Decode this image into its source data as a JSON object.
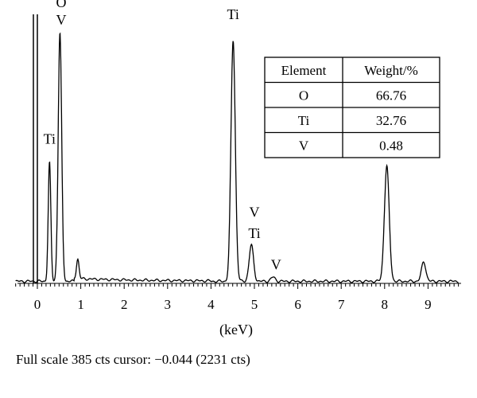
{
  "chart_data": {
    "type": "line",
    "xlabel": "(keV)",
    "xlim": [
      -0.5,
      9.7
    ],
    "x_ticks": [
      "0",
      "1",
      "2",
      "3",
      "4",
      "5",
      "6",
      "7",
      "8",
      "9"
    ],
    "ylim": [
      0,
      385
    ],
    "grid": false,
    "line_color": "#000000",
    "peaks": [
      {
        "energy": 0.28,
        "height": 170,
        "width": 0.03
      },
      {
        "energy": 0.52,
        "height": 355,
        "width": 0.04
      },
      {
        "energy": 0.93,
        "height": 28,
        "width": 0.03
      },
      {
        "energy": 4.51,
        "height": 345,
        "width": 0.05
      },
      {
        "energy": 4.93,
        "height": 52,
        "width": 0.05
      },
      {
        "energy": 5.43,
        "height": 6,
        "width": 0.05
      },
      {
        "energy": 8.05,
        "height": 165,
        "width": 0.055
      },
      {
        "energy": 8.9,
        "height": 28,
        "width": 0.05
      }
    ],
    "peak_labels": [
      {
        "text": "O",
        "energy": 0.55,
        "height": 395
      },
      {
        "text": "V",
        "energy": 0.55,
        "height": 370
      },
      {
        "text": "Ti",
        "energy": 0.28,
        "height": 200
      },
      {
        "text": "Ti",
        "energy": 4.51,
        "height": 378
      },
      {
        "text": "V",
        "energy": 5.0,
        "height": 95
      },
      {
        "text": "Ti",
        "energy": 5.0,
        "height": 65
      },
      {
        "text": "V",
        "energy": 5.5,
        "height": 20
      }
    ]
  },
  "table": {
    "headers": [
      "Element",
      "Weight/%"
    ],
    "rows": [
      [
        "O",
        "66.76"
      ],
      [
        "Ti",
        "32.76"
      ],
      [
        "V",
        "0.48"
      ]
    ]
  },
  "footer": {
    "scale": "Full scale 385 cts",
    "cursor": "cursor: −0.044 (2231 cts)"
  }
}
